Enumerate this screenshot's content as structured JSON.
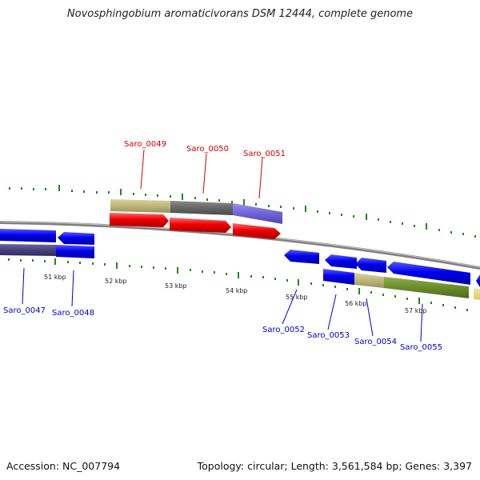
{
  "title": "Novosphingobium aromaticivorans DSM 12444, complete genome",
  "footer": {
    "accession": "Accession: NC_007794",
    "summary": "Topology: circular; Length: 3,561,584 bp; Genes: 3,397"
  },
  "colors": {
    "top_gene_label": "#cc0000",
    "bottom_gene_label": "#0000cc",
    "tick_green": "#1a8a1a",
    "backbone": "#808080"
  },
  "axis_labels": [
    "51 kbp",
    "52 kbp",
    "53 kbp",
    "54 kbp",
    "55 kbp",
    "56 kbp",
    "57 kbp"
  ],
  "top_genes": [
    "Saro_0049",
    "Saro_0050",
    "Saro_0051"
  ],
  "bottom_genes": [
    "Saro_0047",
    "Saro_0048",
    "Saro_0052",
    "Saro_0053",
    "Saro_0054",
    "Saro_0055"
  ]
}
